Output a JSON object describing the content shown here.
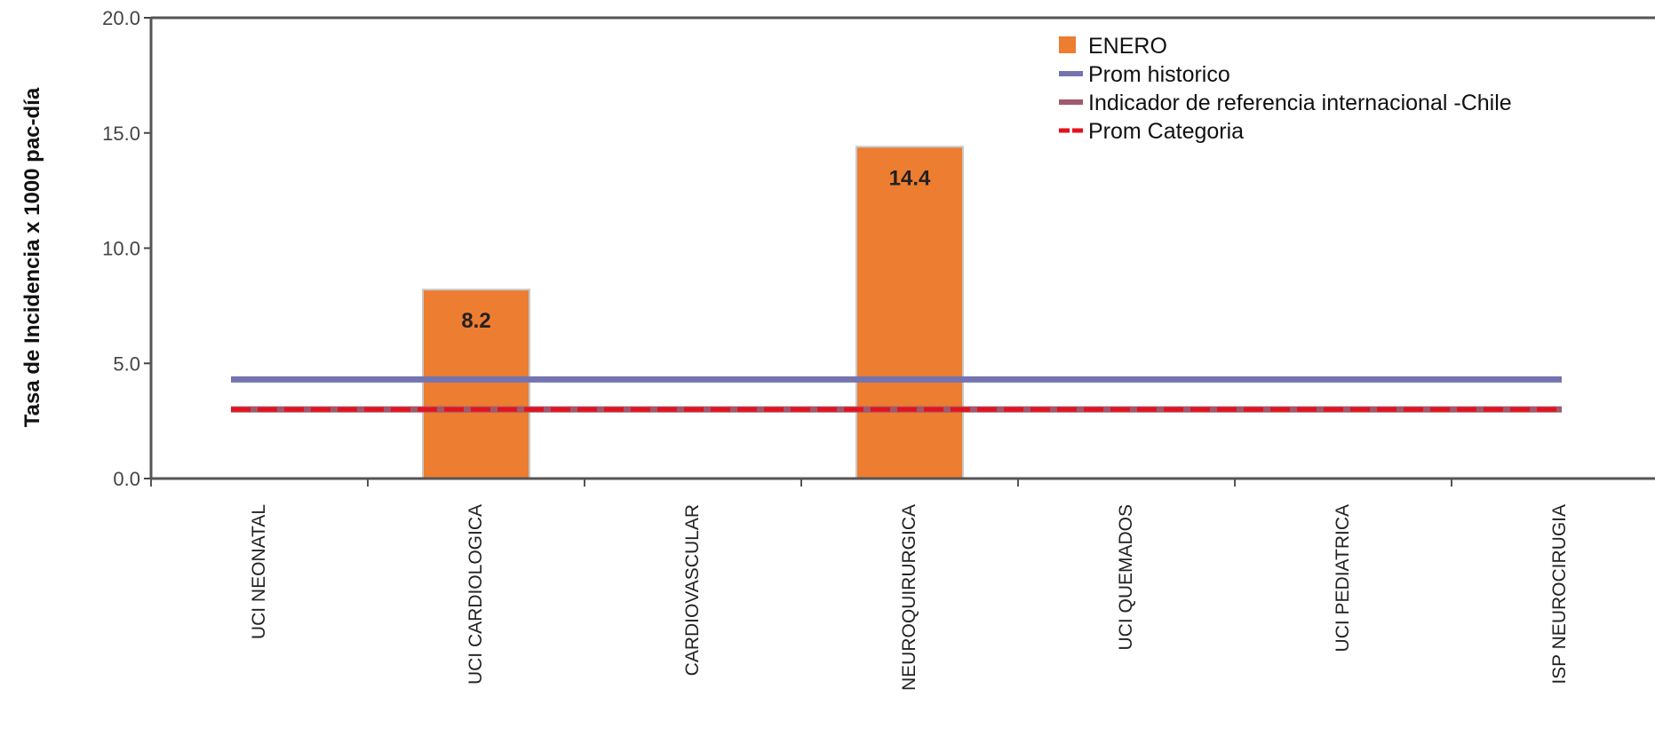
{
  "chart_data": {
    "type": "bar",
    "title": "",
    "xlabel": "",
    "ylabel": "Tasa de Incidencia x 1000 pac-día",
    "ylim": [
      0,
      20
    ],
    "yticks": [
      "0.0",
      "5.0",
      "10.0",
      "15.0",
      "20.0"
    ],
    "grid": false,
    "legend_position": "top-right",
    "categories": [
      "UCI NEONATAL",
      "UCI CARDIOLOGICA",
      "CARDIOVASCULAR",
      "NEUROQUIRURGICA",
      "UCI QUEMADOS",
      "UCI PEDIATRICA",
      "ISP NEUROCIRUGIA"
    ],
    "series": [
      {
        "name": "ENERO",
        "kind": "bar",
        "color": "#ED7D31",
        "values": [
          null,
          8.2,
          null,
          14.4,
          null,
          null,
          null
        ],
        "labels": [
          "",
          "8.2",
          "",
          "14.4",
          "",
          "",
          ""
        ]
      },
      {
        "name": "Prom historico",
        "kind": "line",
        "color": "#7474B0",
        "values": [
          4.3,
          4.3,
          4.3,
          4.3,
          4.3,
          4.3,
          4.3
        ]
      },
      {
        "name": "Indicador de referencia internacional -Chile",
        "kind": "line",
        "color": "#A05A6E",
        "values": [
          3.0,
          3.0,
          3.0,
          3.0,
          3.0,
          3.0,
          3.0
        ]
      },
      {
        "name": "Prom Categoria",
        "kind": "dashed-line",
        "color": "#E3121D",
        "values": [
          3.0,
          3.0,
          3.0,
          3.0,
          3.0,
          3.0,
          3.0
        ]
      }
    ]
  }
}
